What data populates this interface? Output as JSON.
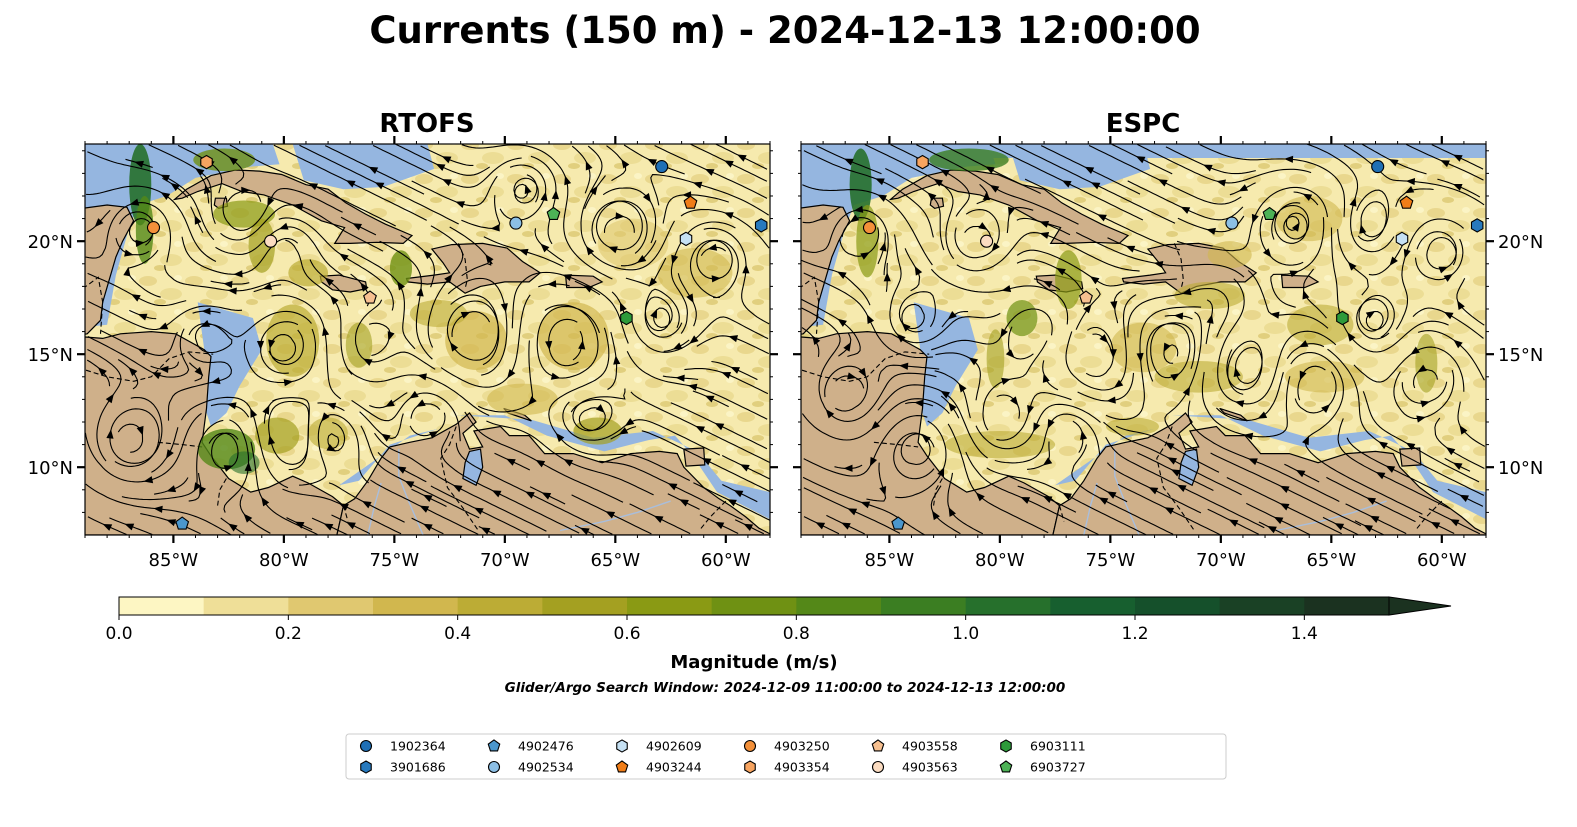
{
  "figure": {
    "title": "Currents (150 m) - 2024-12-13 12:00:00",
    "search_window_note": "Glider/Argo Search Window: 2024-12-09 11:00:00 to 2024-12-13 12:00:00"
  },
  "map": {
    "extent": {
      "lon_min": -89,
      "lon_max": -58,
      "lat_min": 7,
      "lat_max": 24.3
    },
    "lon_ticks": [
      -85,
      -80,
      -75,
      -70,
      -65,
      -60
    ],
    "lon_tick_labels": [
      "85°W",
      "80°W",
      "75°W",
      "70°W",
      "65°W",
      "60°W"
    ],
    "lat_ticks": [
      10,
      15,
      20
    ],
    "lat_tick_labels": [
      "10°N",
      "15°N",
      "20°N"
    ],
    "colors": {
      "land": "#cfb08a",
      "ocean_shallow": "#95b6e0",
      "coast": "#000000",
      "river": "#a9bedc",
      "streamline": "#000000"
    },
    "panels": [
      {
        "id": "rtofs",
        "title": "RTOFS"
      },
      {
        "id": "espc",
        "title": "ESPC"
      }
    ]
  },
  "colorbar": {
    "label": "Magnitude (m/s)",
    "vmin": 0.0,
    "vmax": 1.5,
    "step": 0.1,
    "extend": "max",
    "tick_values": [
      0.0,
      0.2,
      0.4,
      0.6,
      0.8,
      1.0,
      1.2,
      1.4
    ],
    "tick_labels": [
      "0.0",
      "0.2",
      "0.4",
      "0.6",
      "0.8",
      "1.0",
      "1.2",
      "1.4"
    ],
    "colors": [
      "#fdf6c3",
      "#efdf98",
      "#e0c870",
      "#d1b74e",
      "#bcac35",
      "#a4a021",
      "#8a9a14",
      "#6f9113",
      "#548818",
      "#3b7e22",
      "#26702c",
      "#175f2f",
      "#15502b",
      "#1a4125",
      "#1b3220"
    ]
  },
  "legend": {
    "floats": [
      {
        "id": "1902364",
        "marker": "circle",
        "color": "#1f6fb5",
        "lon": -62.9,
        "lat": 23.3
      },
      {
        "id": "3901686",
        "marker": "hexagon",
        "color": "#2779bd",
        "lon": -58.4,
        "lat": 20.7
      },
      {
        "id": "4902476",
        "marker": "pentagon",
        "color": "#4b97cd",
        "lon": -84.6,
        "lat": 7.5
      },
      {
        "id": "4902534",
        "marker": "circle",
        "color": "#8cbfe5",
        "lon": -69.5,
        "lat": 20.8
      },
      {
        "id": "4902609",
        "marker": "hexagon",
        "color": "#c6e1f4",
        "lon": -61.8,
        "lat": 20.1
      },
      {
        "id": "4903244",
        "marker": "pentagon",
        "color": "#f07d18",
        "lon": -61.6,
        "lat": 21.7
      },
      {
        "id": "4903250",
        "marker": "circle",
        "color": "#f3903a",
        "lon": -85.9,
        "lat": 20.6
      },
      {
        "id": "4903354",
        "marker": "hexagon",
        "color": "#f7a460",
        "lon": -83.5,
        "lat": 23.5
      },
      {
        "id": "4903558",
        "marker": "pentagon",
        "color": "#f7c090",
        "lon": -76.1,
        "lat": 17.5
      },
      {
        "id": "4903563",
        "marker": "circle",
        "color": "#fbdcc1",
        "lon": -80.6,
        "lat": 20.0
      },
      {
        "id": "6903111",
        "marker": "hexagon",
        "color": "#2d9a3a",
        "lon": -64.5,
        "lat": 16.6
      },
      {
        "id": "6903727",
        "marker": "pentagon",
        "color": "#4db256",
        "lon": -67.8,
        "lat": 21.2
      }
    ]
  }
}
